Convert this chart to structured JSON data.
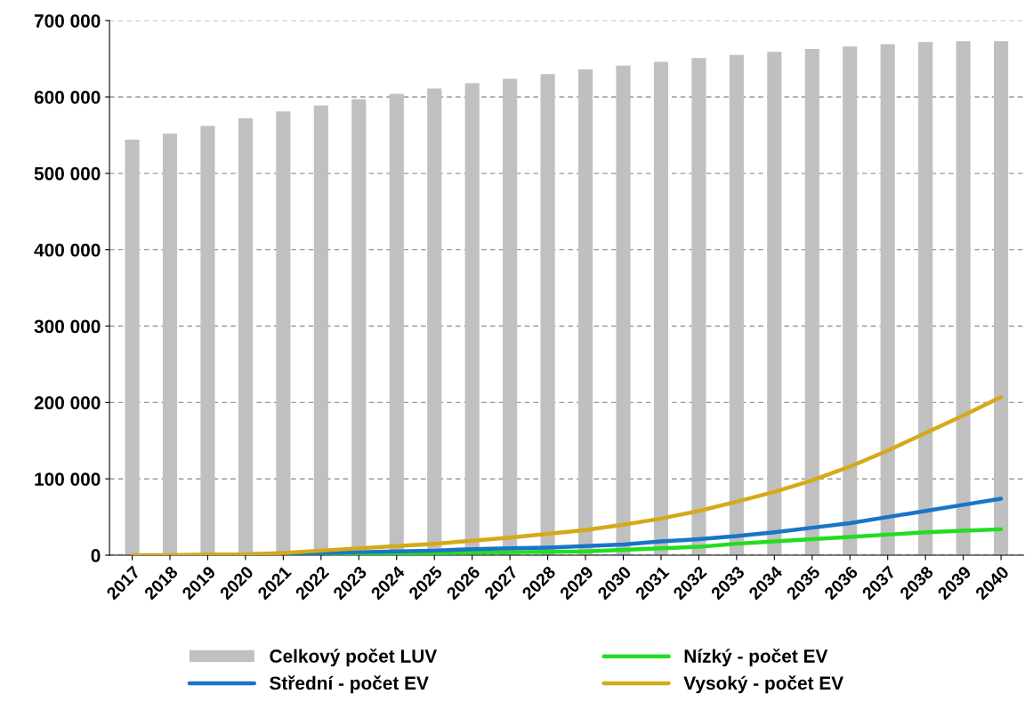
{
  "chart_data": {
    "type": "bar",
    "categories": [
      "2017",
      "2018",
      "2019",
      "2020",
      "2021",
      "2022",
      "2023",
      "2024",
      "2025",
      "2026",
      "2027",
      "2028",
      "2029",
      "2030",
      "2031",
      "2032",
      "2033",
      "2034",
      "2035",
      "2036",
      "2037",
      "2038",
      "2039",
      "2040"
    ],
    "series": [
      {
        "name": "Celkový počet LUV",
        "color": "#c0c0c0",
        "values": [
          544000,
          552000,
          562000,
          572000,
          581000,
          589000,
          597000,
          604000,
          611000,
          618000,
          624000,
          630000,
          636000,
          641000,
          646000,
          651000,
          655000,
          659000,
          663000,
          666000,
          669000,
          672000,
          673000,
          673000
        ]
      },
      {
        "name": "Nízký - počet EV",
        "type": "line",
        "color": "#22dd22",
        "values": [
          null,
          null,
          null,
          null,
          1000,
          1500,
          2000,
          2500,
          3000,
          3500,
          4000,
          4500,
          5000,
          7000,
          9000,
          11000,
          15000,
          18000,
          21000,
          24000,
          27000,
          30000,
          32000,
          34000
        ]
      },
      {
        "name": "Střední - počet EV",
        "type": "line",
        "color": "#1a75c8",
        "values": [
          null,
          null,
          null,
          1000,
          2000,
          3000,
          4000,
          5000,
          6000,
          8000,
          9000,
          10000,
          12000,
          14000,
          18000,
          21000,
          25000,
          30000,
          36000,
          42000,
          50000,
          58000,
          66000,
          74000
        ]
      },
      {
        "name": "Vysoký - počet EV",
        "type": "line",
        "color": "#d4aa1a",
        "values": [
          0,
          0,
          1000,
          1000,
          3000,
          6000,
          9000,
          12000,
          15000,
          19000,
          23000,
          28000,
          33000,
          40000,
          48000,
          58000,
          70000,
          83000,
          98000,
          116000,
          137000,
          160000,
          183000,
          207000
        ]
      }
    ],
    "ylim": [
      0,
      700000
    ],
    "yticks": [
      {
        "value": 0,
        "label": "0"
      },
      {
        "value": 100000,
        "label": "100 000"
      },
      {
        "value": 200000,
        "label": "200 000"
      },
      {
        "value": 300000,
        "label": "300 000"
      },
      {
        "value": 400000,
        "label": "400 000"
      },
      {
        "value": 500000,
        "label": "500 000"
      },
      {
        "value": 600000,
        "label": "600 000"
      },
      {
        "value": 700000,
        "label": "700 000"
      }
    ],
    "grid": "y",
    "legend": "bottom"
  }
}
